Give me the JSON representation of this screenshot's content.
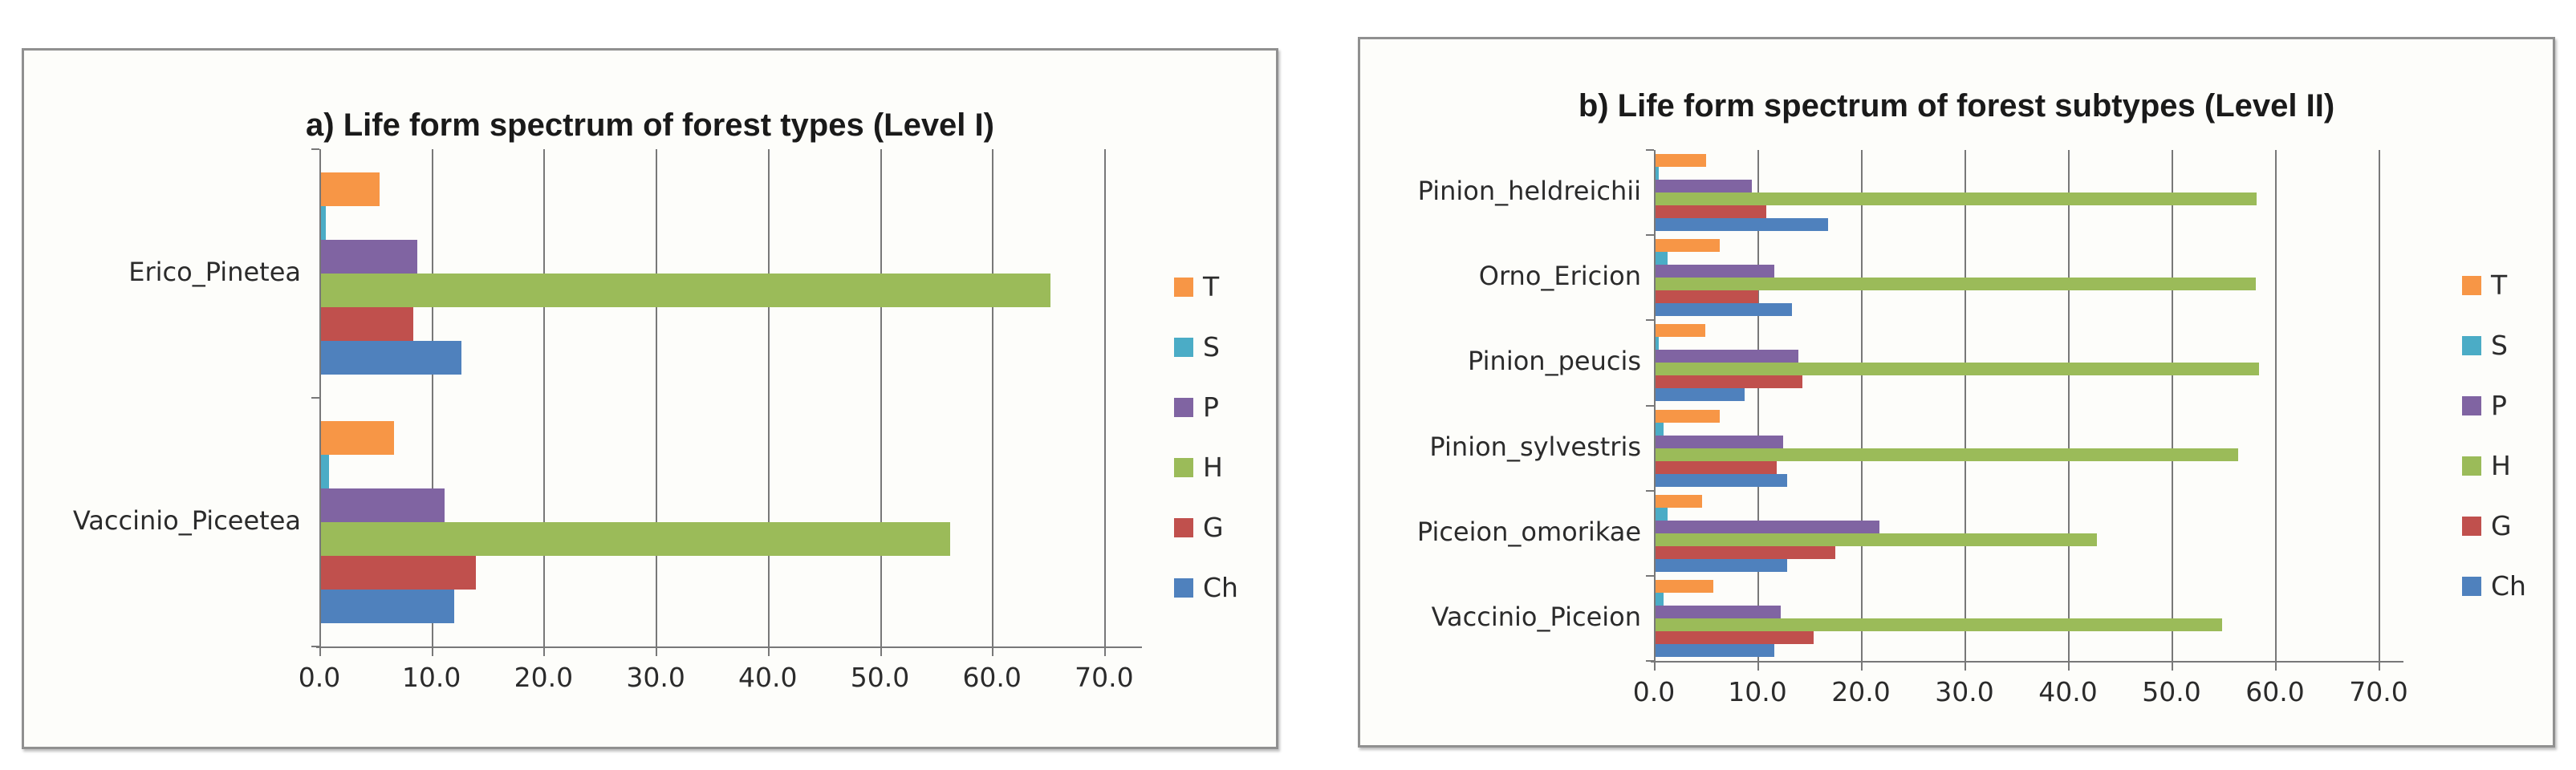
{
  "figure": {
    "description": "Two horizontal grouped bar charts of life form spectra",
    "background_color": "#ffffff",
    "panel_background": "#fdfdfa",
    "gridline_color": "#787878"
  },
  "legend": {
    "labels": [
      "T",
      "S",
      "P",
      "H",
      "G",
      "Ch"
    ]
  },
  "colors": {
    "T": "#F79646",
    "S": "#4BACC6",
    "P": "#8064A2",
    "H": "#9BBB59",
    "G": "#C0504D",
    "Ch": "#4F81BD"
  },
  "chart_data": [
    {
      "id": "a",
      "type": "bar",
      "orientation": "horizontal",
      "title": "a) Life form spectrum of forest types (Level I)",
      "categories": [
        "Erico_Pinetea",
        "Vaccinio_Piceetea"
      ],
      "series": [
        {
          "name": "T",
          "color": "#F79646",
          "values": [
            5.2,
            6.5
          ]
        },
        {
          "name": "S",
          "color": "#4BACC6",
          "values": [
            0.4,
            0.7
          ]
        },
        {
          "name": "P",
          "color": "#8064A2",
          "values": [
            8.6,
            11.0
          ]
        },
        {
          "name": "H",
          "color": "#9BBB59",
          "values": [
            65.1,
            56.1
          ]
        },
        {
          "name": "G",
          "color": "#C0504D",
          "values": [
            8.2,
            13.8
          ]
        },
        {
          "name": "Ch",
          "color": "#4F81BD",
          "values": [
            12.5,
            11.9
          ]
        }
      ],
      "xlim": [
        0,
        70
      ],
      "x_tick_labels": [
        "0.0",
        "10.0",
        "20.0",
        "30.0",
        "40.0",
        "50.0",
        "60.0",
        "70.0"
      ],
      "grid": true,
      "legend_position": "right"
    },
    {
      "id": "b",
      "type": "bar",
      "orientation": "horizontal",
      "title": "b) Life form spectrum of forest subtypes (Level II)",
      "categories": [
        "Pinion_heldreichii",
        "Orno_Ericion",
        "Pinion_peucis",
        "Pinion_sylvestris",
        "Piceion_omorikae",
        "Vaccinio_Piceion"
      ],
      "series": [
        {
          "name": "T",
          "color": "#F79646",
          "values": [
            4.9,
            6.2,
            4.8,
            6.2,
            4.5,
            5.6
          ]
        },
        {
          "name": "S",
          "color": "#4BACC6",
          "values": [
            0.3,
            1.2,
            0.3,
            0.8,
            1.2,
            0.8
          ]
        },
        {
          "name": "P",
          "color": "#8064A2",
          "values": [
            9.3,
            11.5,
            13.8,
            12.3,
            21.6,
            12.1
          ]
        },
        {
          "name": "H",
          "color": "#9BBB59",
          "values": [
            58.1,
            58.0,
            58.3,
            56.3,
            42.6,
            54.7
          ]
        },
        {
          "name": "G",
          "color": "#C0504D",
          "values": [
            10.7,
            9.9,
            14.2,
            11.7,
            17.4,
            15.3
          ]
        },
        {
          "name": "Ch",
          "color": "#4F81BD",
          "values": [
            16.7,
            13.2,
            8.6,
            12.7,
            12.7,
            11.5
          ]
        }
      ],
      "xlim": [
        0,
        70
      ],
      "x_tick_labels": [
        "0.0",
        "10.0",
        "20.0",
        "30.0",
        "40.0",
        "50.0",
        "60.0",
        "70.0"
      ],
      "grid": true,
      "legend_position": "right"
    }
  ]
}
